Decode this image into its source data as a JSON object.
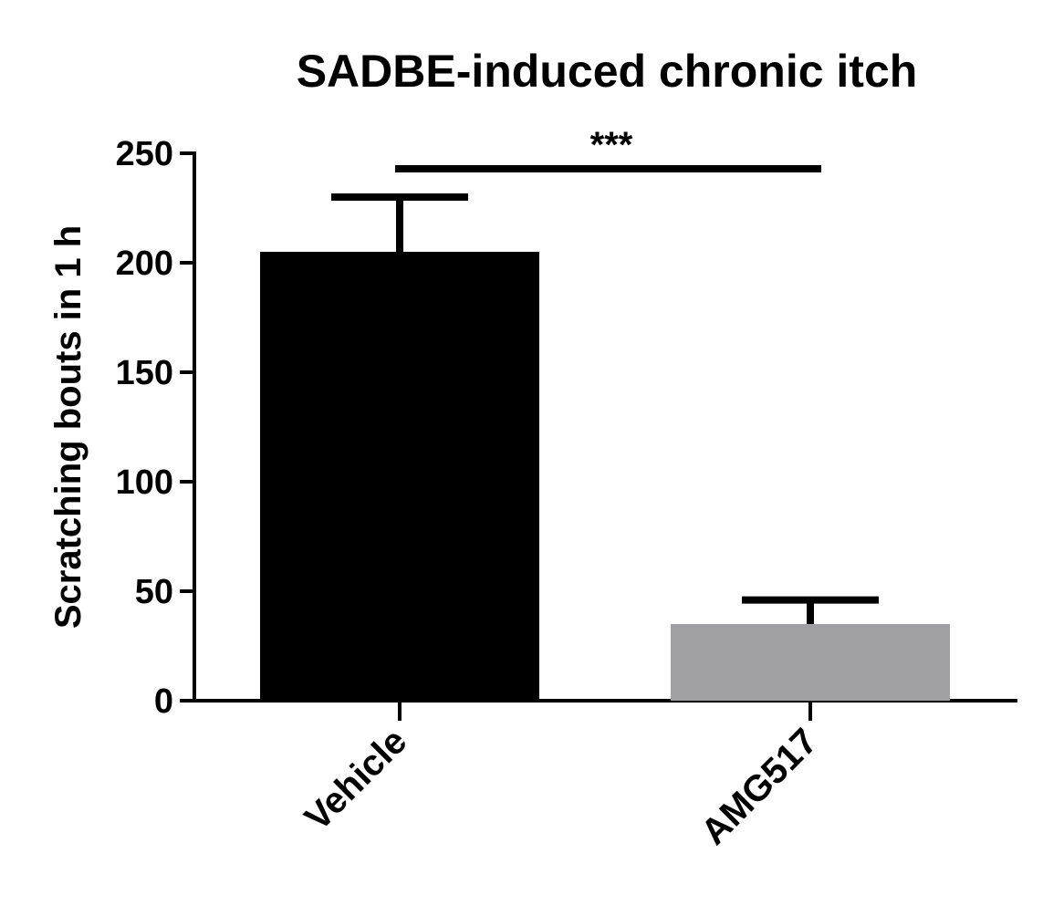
{
  "chart_data": {
    "type": "bar",
    "title": "SADBE-induced chronic itch",
    "y_label": "Scratching bouts in 1 h",
    "categories": [
      "Vehicle",
      "AMG517"
    ],
    "values": [
      205,
      35
    ],
    "errors": [
      25,
      11
    ],
    "colors": [
      "#000000",
      "#a0a0a4"
    ],
    "ylim": [
      0,
      250
    ],
    "yticks": [
      0,
      50,
      100,
      150,
      200,
      250
    ],
    "annotation": "***"
  }
}
